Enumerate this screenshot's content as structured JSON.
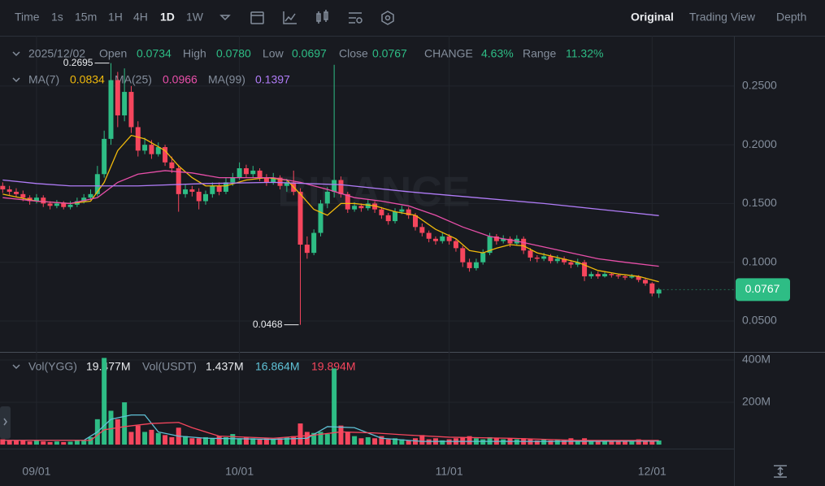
{
  "toolbar": {
    "intervals": [
      "Time",
      "1s",
      "15m",
      "1H",
      "4H",
      "1D",
      "1W"
    ],
    "views": [
      "Original",
      "Trading View",
      "Depth"
    ]
  },
  "chart_data": {
    "type": "candlestick",
    "watermark": "BINANCE",
    "ohlc_legend": {
      "date": "2025/12/02",
      "labels": [
        "Open",
        "High",
        "Low",
        "Close",
        "CHANGE",
        "Range"
      ],
      "values": [
        "0.0734",
        "0.0780",
        "0.0697",
        "0.0767",
        "4.63%",
        "11.32%"
      ]
    },
    "up_color": "#2ebd85",
    "down_color": "#f6465d",
    "candles": [
      [
        0.165,
        0.168,
        0.159,
        0.162
      ],
      [
        0.162,
        0.165,
        0.157,
        0.16
      ],
      [
        0.16,
        0.163,
        0.155,
        0.158
      ],
      [
        0.158,
        0.161,
        0.152,
        0.155
      ],
      [
        0.155,
        0.157,
        0.149,
        0.152
      ],
      [
        0.152,
        0.158,
        0.15,
        0.155
      ],
      [
        0.155,
        0.157,
        0.147,
        0.15
      ],
      [
        0.15,
        0.152,
        0.145,
        0.148
      ],
      [
        0.148,
        0.153,
        0.146,
        0.15
      ],
      [
        0.15,
        0.152,
        0.145,
        0.147
      ],
      [
        0.147,
        0.152,
        0.145,
        0.149
      ],
      [
        0.149,
        0.155,
        0.147,
        0.152
      ],
      [
        0.152,
        0.158,
        0.15,
        0.155
      ],
      [
        0.155,
        0.162,
        0.153,
        0.158
      ],
      [
        0.158,
        0.182,
        0.156,
        0.175
      ],
      [
        0.175,
        0.212,
        0.172,
        0.205
      ],
      [
        0.205,
        0.2695,
        0.2,
        0.255
      ],
      [
        0.255,
        0.262,
        0.215,
        0.225
      ],
      [
        0.225,
        0.265,
        0.22,
        0.245
      ],
      [
        0.245,
        0.25,
        0.21,
        0.215
      ],
      [
        0.215,
        0.22,
        0.19,
        0.195
      ],
      [
        0.195,
        0.206,
        0.192,
        0.2
      ],
      [
        0.2,
        0.204,
        0.188,
        0.192
      ],
      [
        0.192,
        0.202,
        0.19,
        0.198
      ],
      [
        0.198,
        0.2,
        0.182,
        0.185
      ],
      [
        0.185,
        0.19,
        0.176,
        0.18
      ],
      [
        0.18,
        0.183,
        0.143,
        0.158
      ],
      [
        0.158,
        0.166,
        0.155,
        0.162
      ],
      [
        0.162,
        0.165,
        0.156,
        0.16
      ],
      [
        0.16,
        0.163,
        0.145,
        0.152
      ],
      [
        0.152,
        0.161,
        0.149,
        0.158
      ],
      [
        0.158,
        0.168,
        0.155,
        0.165
      ],
      [
        0.165,
        0.168,
        0.157,
        0.16
      ],
      [
        0.16,
        0.172,
        0.158,
        0.168
      ],
      [
        0.168,
        0.176,
        0.165,
        0.172
      ],
      [
        0.172,
        0.185,
        0.17,
        0.18
      ],
      [
        0.18,
        0.183,
        0.172,
        0.175
      ],
      [
        0.175,
        0.182,
        0.172,
        0.178
      ],
      [
        0.178,
        0.18,
        0.169,
        0.172
      ],
      [
        0.172,
        0.175,
        0.165,
        0.168
      ],
      [
        0.168,
        0.176,
        0.166,
        0.172
      ],
      [
        0.172,
        0.174,
        0.162,
        0.165
      ],
      [
        0.165,
        0.171,
        0.16,
        0.168
      ],
      [
        0.168,
        0.178,
        0.157,
        0.16
      ],
      [
        0.16,
        0.163,
        0.0468,
        0.115
      ],
      [
        0.115,
        0.122,
        0.103,
        0.108
      ],
      [
        0.108,
        0.128,
        0.106,
        0.125
      ],
      [
        0.125,
        0.153,
        0.122,
        0.15
      ],
      [
        0.15,
        0.164,
        0.146,
        0.16
      ],
      [
        0.16,
        0.268,
        0.155,
        0.17
      ],
      [
        0.17,
        0.173,
        0.155,
        0.158
      ],
      [
        0.158,
        0.16,
        0.142,
        0.145
      ],
      [
        0.145,
        0.151,
        0.143,
        0.148
      ],
      [
        0.148,
        0.15,
        0.143,
        0.146
      ],
      [
        0.146,
        0.153,
        0.144,
        0.15
      ],
      [
        0.15,
        0.152,
        0.142,
        0.145
      ],
      [
        0.145,
        0.147,
        0.137,
        0.14
      ],
      [
        0.14,
        0.142,
        0.132,
        0.135
      ],
      [
        0.135,
        0.146,
        0.133,
        0.143
      ],
      [
        0.143,
        0.148,
        0.141,
        0.145
      ],
      [
        0.145,
        0.147,
        0.137,
        0.14
      ],
      [
        0.14,
        0.142,
        0.127,
        0.13
      ],
      [
        0.13,
        0.133,
        0.122,
        0.125
      ],
      [
        0.125,
        0.127,
        0.117,
        0.12
      ],
      [
        0.12,
        0.122,
        0.115,
        0.118
      ],
      [
        0.118,
        0.125,
        0.116,
        0.122
      ],
      [
        0.122,
        0.124,
        0.115,
        0.118
      ],
      [
        0.118,
        0.12,
        0.109,
        0.112
      ],
      [
        0.112,
        0.114,
        0.096,
        0.1
      ],
      [
        0.1,
        0.103,
        0.092,
        0.095
      ],
      [
        0.095,
        0.103,
        0.093,
        0.1
      ],
      [
        0.1,
        0.111,
        0.098,
        0.108
      ],
      [
        0.108,
        0.125,
        0.106,
        0.122
      ],
      [
        0.122,
        0.124,
        0.115,
        0.118
      ],
      [
        0.118,
        0.123,
        0.116,
        0.12
      ],
      [
        0.12,
        0.122,
        0.113,
        0.116
      ],
      [
        0.116,
        0.123,
        0.114,
        0.12
      ],
      [
        0.12,
        0.122,
        0.107,
        0.11
      ],
      [
        0.11,
        0.112,
        0.101,
        0.104
      ],
      [
        0.104,
        0.106,
        0.1,
        0.103
      ],
      [
        0.103,
        0.108,
        0.101,
        0.105
      ],
      [
        0.105,
        0.107,
        0.099,
        0.101
      ],
      [
        0.101,
        0.106,
        0.099,
        0.103
      ],
      [
        0.103,
        0.105,
        0.098,
        0.1
      ],
      [
        0.1,
        0.102,
        0.095,
        0.098
      ],
      [
        0.098,
        0.103,
        0.096,
        0.1
      ],
      [
        0.1,
        0.102,
        0.084,
        0.088
      ],
      [
        0.088,
        0.092,
        0.086,
        0.09
      ],
      [
        0.09,
        0.092,
        0.086,
        0.088
      ],
      [
        0.088,
        0.092,
        0.087,
        0.09
      ],
      [
        0.09,
        0.091,
        0.087,
        0.089
      ],
      [
        0.089,
        0.09,
        0.086,
        0.088
      ],
      [
        0.088,
        0.089,
        0.085,
        0.087
      ],
      [
        0.087,
        0.09,
        0.086,
        0.088
      ],
      [
        0.088,
        0.089,
        0.083,
        0.085
      ],
      [
        0.085,
        0.087,
        0.08,
        0.082
      ],
      [
        0.082,
        0.083,
        0.071,
        0.0734
      ],
      [
        0.0734,
        0.078,
        0.0697,
        0.0767
      ]
    ],
    "xlim": [
      -0.4,
      108.1
    ],
    "xticks": [
      {
        "value": 5,
        "label": "09/01"
      },
      {
        "value": 35,
        "label": "10/01"
      },
      {
        "value": 66,
        "label": "11/01"
      },
      {
        "value": 96,
        "label": "12/01"
      }
    ],
    "ylim": [
      0.0244,
      0.29
    ],
    "yticks": [
      {
        "value": 0.05,
        "label": "0.0500"
      },
      {
        "value": 0.1,
        "label": "0.1000"
      },
      {
        "value": 0.15,
        "label": "0.1500"
      },
      {
        "value": 0.2,
        "label": "0.2000"
      },
      {
        "value": 0.25,
        "label": "0.2500"
      }
    ],
    "series": [
      {
        "name": "MA(7)",
        "color": "#f0b90b",
        "x": [
          0,
          5,
          10,
          13,
          15,
          17,
          19,
          21,
          24,
          26,
          28,
          30,
          33,
          36,
          39,
          42,
          44,
          46,
          48,
          50,
          52,
          55,
          58,
          61,
          64,
          67,
          69,
          71,
          73,
          75,
          77,
          79,
          82,
          85,
          88,
          91,
          94,
          97
        ],
        "values": [
          0.158,
          0.152,
          0.15,
          0.152,
          0.168,
          0.195,
          0.208,
          0.205,
          0.195,
          0.182,
          0.172,
          0.165,
          0.165,
          0.17,
          0.172,
          0.17,
          0.158,
          0.145,
          0.14,
          0.15,
          0.15,
          0.148,
          0.143,
          0.14,
          0.128,
          0.12,
          0.11,
          0.108,
          0.112,
          0.115,
          0.114,
          0.108,
          0.104,
          0.1,
          0.093,
          0.09,
          0.088,
          0.0834
        ]
      },
      {
        "name": "MA(25)",
        "color": "#e84fa9",
        "x": [
          0,
          5,
          10,
          14,
          17,
          20,
          24,
          28,
          32,
          36,
          40,
          44,
          48,
          52,
          56,
          60,
          64,
          68,
          72,
          76,
          80,
          84,
          88,
          92,
          97
        ],
        "values": [
          0.155,
          0.152,
          0.15,
          0.155,
          0.168,
          0.175,
          0.178,
          0.176,
          0.172,
          0.172,
          0.172,
          0.168,
          0.162,
          0.155,
          0.152,
          0.148,
          0.14,
          0.13,
          0.122,
          0.118,
          0.113,
          0.108,
          0.103,
          0.1,
          0.0966
        ]
      },
      {
        "name": "MA(99)",
        "color": "#b07cf7",
        "x": [
          0,
          5,
          10,
          20,
          30,
          40,
          50,
          60,
          70,
          80,
          90,
          97
        ],
        "values": [
          0.17,
          0.167,
          0.165,
          0.165,
          0.167,
          0.168,
          0.166,
          0.16,
          0.155,
          0.15,
          0.144,
          0.1397
        ]
      }
    ],
    "last_price": 0.0767,
    "annotations": [
      {
        "x": 16,
        "value": 0.2695
      },
      {
        "x": 44,
        "value": 0.0468
      }
    ],
    "volume": {
      "name": "Vol(YGG)",
      "value_label": "19.477M",
      "usdt_name": "Vol(USDT)",
      "usdt_label": "1.437M",
      "values": [
        25,
        20,
        18,
        20,
        15,
        18,
        15,
        12,
        15,
        12,
        14,
        18,
        20,
        35,
        120,
        410,
        160,
        120,
        200,
        60,
        90,
        60,
        70,
        55,
        45,
        35,
        80,
        40,
        30,
        30,
        35,
        30,
        40,
        35,
        50,
        30,
        35,
        30,
        25,
        30,
        28,
        30,
        35,
        40,
        100,
        60,
        55,
        60,
        50,
        360,
        90,
        60,
        40,
        30,
        35,
        30,
        40,
        25,
        30,
        25,
        20,
        30,
        45,
        25,
        30,
        20,
        25,
        30,
        35,
        40,
        30,
        25,
        35,
        30,
        25,
        30,
        25,
        30,
        25,
        20,
        25,
        20,
        25,
        20,
        30,
        20,
        30,
        20,
        20,
        15,
        18,
        15,
        18,
        15,
        25,
        20,
        19,
        19.477
      ],
      "ylim": [
        -19,
        427
      ],
      "yticks": [
        {
          "value": 200,
          "label": "200M"
        },
        {
          "value": 400,
          "label": "400M"
        }
      ],
      "series": [
        {
          "color": "#5fc1d6",
          "value_label": "16.864M",
          "x": [
            0,
            12,
            14,
            16,
            19,
            21,
            23,
            26,
            30,
            40,
            45,
            48,
            52,
            56,
            62,
            70,
            80,
            97
          ],
          "values": [
            20,
            20,
            60,
            120,
            140,
            140,
            60,
            40,
            30,
            25,
            30,
            85,
            80,
            30,
            15,
            15,
            15,
            16.864
          ]
        },
        {
          "color": "#f6465d",
          "value_label": "19.894M",
          "x": [
            0,
            13,
            15,
            18,
            22,
            26,
            28,
            32,
            40,
            46,
            50,
            55,
            60,
            66,
            75,
            85,
            97
          ],
          "values": [
            20,
            20,
            70,
            85,
            100,
            105,
            80,
            40,
            30,
            45,
            60,
            55,
            45,
            35,
            30,
            20,
            19.894
          ]
        }
      ]
    }
  }
}
